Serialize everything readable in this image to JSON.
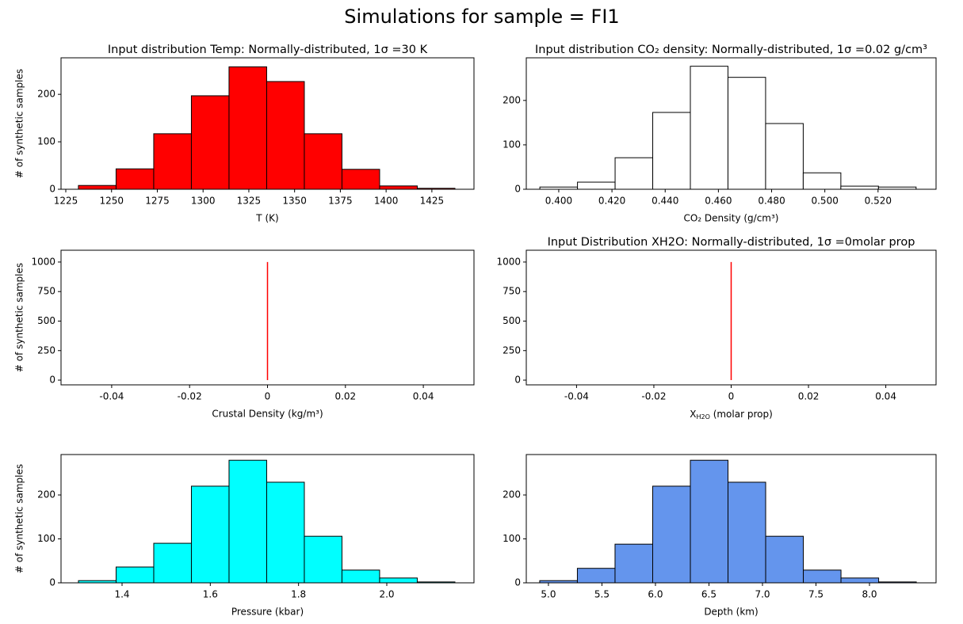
{
  "title": "Simulations for sample = FI1",
  "chart_data": [
    {
      "type": "histogram",
      "title": "Input distribution Temp: Normally-distributed, 1σ =30 K",
      "xlabel": "T (K)",
      "ylabel": "# of synthetic samples",
      "color": "#ff0000",
      "bins": [
        1231.9,
        1252.47,
        1273.04,
        1293.61,
        1314.18,
        1334.75,
        1355.32,
        1375.89,
        1396.46,
        1417.03,
        1437.6
      ],
      "values": [
        8,
        43,
        117,
        197,
        258,
        227,
        117,
        42,
        7,
        2
      ],
      "xlim": [
        1222.4,
        1448
      ],
      "xticks": [
        1225,
        1250,
        1275,
        1300,
        1325,
        1350,
        1375,
        1400,
        1425
      ],
      "ylim": [
        0,
        277
      ],
      "yticks": [
        0,
        100,
        200
      ]
    },
    {
      "type": "histogram",
      "title": "Input distribution CO₂ density: Normally-distributed, 1σ =0.02 g/cm³",
      "xlabel": "CO₂ Density (g/cm³)",
      "color": "#ffffff",
      "bins": [
        0.3929,
        0.40704,
        0.42118,
        0.43532,
        0.44946,
        0.4636,
        0.47774,
        0.49188,
        0.50602,
        0.52016,
        0.5343
      ],
      "values": [
        5,
        16,
        71,
        173,
        277,
        252,
        148,
        37,
        7,
        5
      ],
      "xlim": [
        0.3878,
        0.5418
      ],
      "xticks": [
        {
          "value": 0.4,
          "label": "0.400"
        },
        {
          "value": 0.42,
          "label": "0.420"
        },
        {
          "value": 0.44,
          "label": "0.440"
        },
        {
          "value": 0.46,
          "label": "0.460"
        },
        {
          "value": 0.48,
          "label": "0.480"
        },
        {
          "value": 0.5,
          "label": "0.500"
        },
        {
          "value": 0.52,
          "label": "0.520"
        }
      ],
      "ylim": [
        0,
        296
      ],
      "yticks": [
        0,
        100,
        200
      ]
    },
    {
      "type": "vline",
      "xlabel": "Crustal Density (kg/m³)",
      "ylabel": "# of synthetic samples",
      "color": "#ff0000",
      "x": [
        0
      ],
      "ymin": [
        0
      ],
      "ymax": [
        1000
      ],
      "xlim": [
        -0.053,
        0.053
      ],
      "xticks": [
        -0.04,
        -0.02,
        0,
        0.02,
        0.04
      ],
      "ylim": [
        -40,
        1100
      ],
      "yticks": [
        0,
        250,
        500,
        750,
        1000
      ]
    },
    {
      "type": "vline",
      "title": "Input Distribution XH2O: Normally-distributed, 1σ =0molar prop",
      "xlabel": {
        "main": "X",
        "sub": "H2O",
        "rest": " (molar prop)"
      },
      "color": "#ff0000",
      "x": [
        0
      ],
      "ymin": [
        0
      ],
      "ymax": [
        1000
      ],
      "xlim": [
        -0.053,
        0.053
      ],
      "xticks": [
        -0.04,
        -0.02,
        0,
        0.02,
        0.04
      ],
      "ylim": [
        -40,
        1100
      ],
      "yticks": [
        0,
        250,
        500,
        750,
        1000
      ]
    },
    {
      "type": "histogram",
      "xlabel": "Pressure (kbar)",
      "ylabel": "# of synthetic samples",
      "color": "#00ffff",
      "bins": [
        1.3012,
        1.38652,
        1.47184,
        1.55716,
        1.64248,
        1.7278,
        1.81312,
        1.89844,
        1.98376,
        2.06908,
        2.1544
      ],
      "values": [
        5,
        36,
        90,
        220,
        279,
        229,
        106,
        29,
        11,
        2
      ],
      "xlim": [
        1.2617,
        2.1976
      ],
      "xticks": [
        1.4,
        1.6,
        1.8,
        {
          "value": 2.0,
          "label": "2.0"
        }
      ],
      "ylim": [
        0,
        292
      ],
      "yticks": [
        0,
        100,
        200
      ]
    },
    {
      "type": "histogram",
      "xlabel": "Depth (km)",
      "color": "#6495ed",
      "bins": [
        4.9185,
        5.2704,
        5.6223,
        5.9742,
        6.3261,
        6.678,
        7.0299,
        7.3818,
        7.7337,
        8.0856,
        8.4375
      ],
      "values": [
        5,
        33,
        88,
        220,
        279,
        229,
        106,
        29,
        11,
        2
      ],
      "xlim": [
        4.793,
        8.622
      ],
      "xticks": [
        {
          "value": 5.0,
          "label": "5.0"
        },
        5.5,
        {
          "value": 6.0,
          "label": "6.0"
        },
        6.5,
        {
          "value": 7.0,
          "label": "7.0"
        },
        7.5,
        {
          "value": 8.0,
          "label": "8.0"
        }
      ],
      "ylim": [
        0,
        292
      ],
      "yticks": [
        0,
        100,
        200
      ]
    }
  ]
}
